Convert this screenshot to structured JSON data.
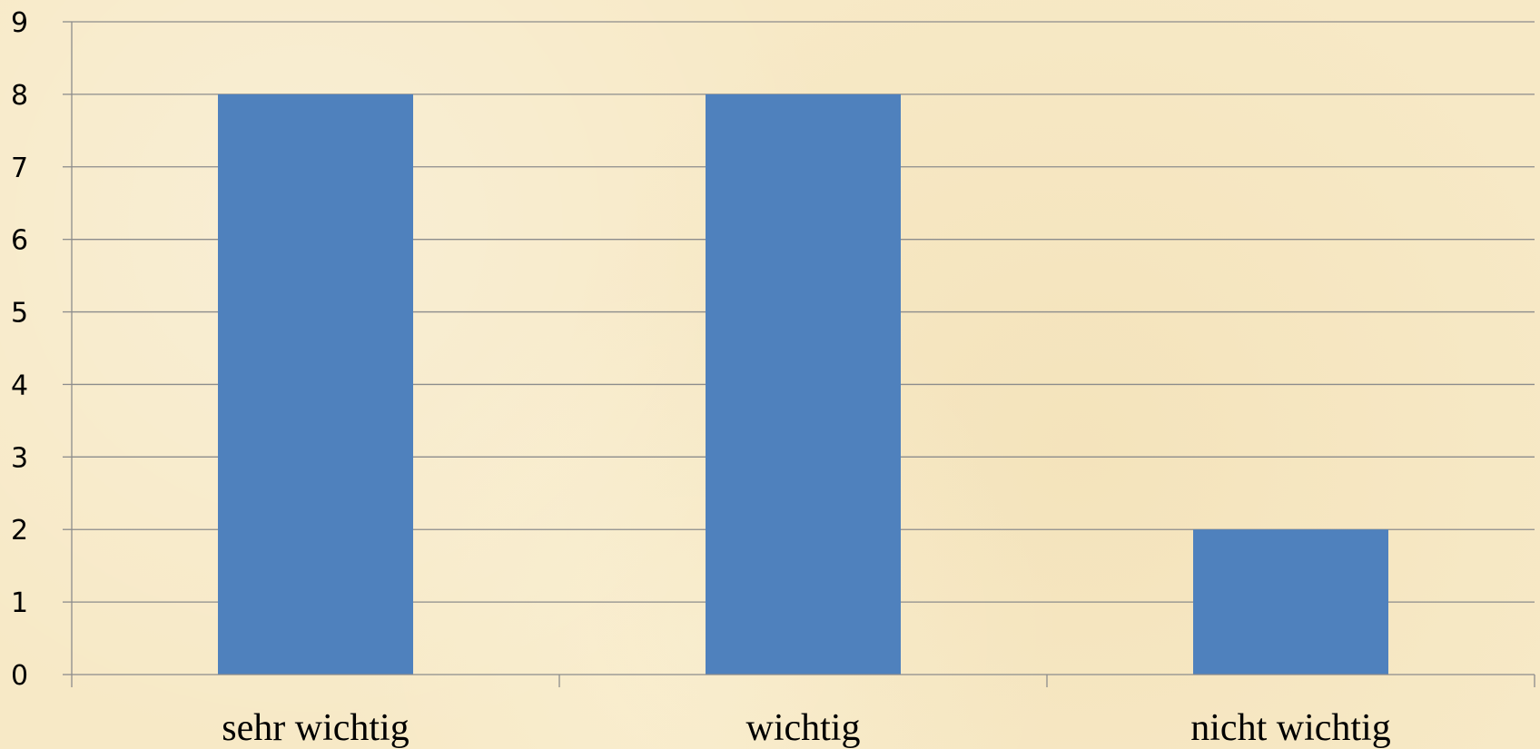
{
  "chart_data": {
    "type": "bar",
    "categories": [
      "sehr wichtig",
      "wichtig",
      "nicht wichtig"
    ],
    "values": [
      8,
      8,
      2
    ],
    "title": "",
    "xlabel": "",
    "ylabel": "",
    "ylim": [
      0,
      9
    ],
    "yticks": [
      "0",
      "1",
      "2",
      "3",
      "4",
      "5",
      "6",
      "7",
      "8",
      "9"
    ],
    "grid": true,
    "legend": "none"
  },
  "colors": {
    "bar": "#4f81bd",
    "grid": "#8c8c8c",
    "axis": "#8c8c8c",
    "background": "#f7e9c6"
  }
}
